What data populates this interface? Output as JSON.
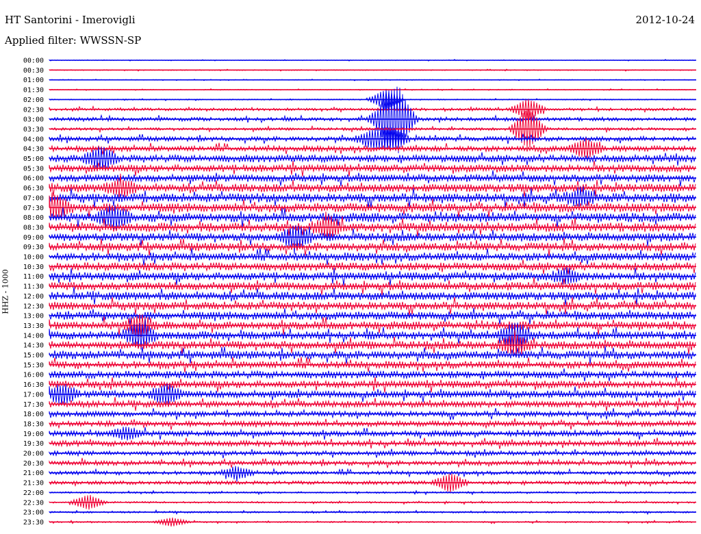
{
  "header": {
    "station": "HT Santorini - Imerovigli",
    "filter": "Applied filter: WWSSN-SP",
    "date": "2012-10-24"
  },
  "chart_data": {
    "type": "line",
    "title": "HT Santorini - Imerovigli",
    "subtitle": "Applied filter: WWSSN-SP",
    "ylabel": "HHZ - 1000",
    "xlabel": "",
    "grid": false,
    "legend": "none",
    "trace_colors": [
      "#0000ee",
      "#ee0033"
    ],
    "rows": [
      "00:00",
      "00:30",
      "01:00",
      "01:30",
      "02:00",
      "02:30",
      "03:00",
      "03:30",
      "04:00",
      "04:30",
      "05:00",
      "05:30",
      "06:00",
      "06:30",
      "07:00",
      "07:30",
      "08:00",
      "08:30",
      "09:00",
      "09:30",
      "10:00",
      "10:30",
      "11:00",
      "11:30",
      "12:00",
      "12:30",
      "13:00",
      "13:30",
      "14:00",
      "14:30",
      "15:00",
      "15:30",
      "16:00",
      "16:30",
      "17:00",
      "17:30",
      "18:00",
      "18:30",
      "19:00",
      "19:30",
      "20:00",
      "20:30",
      "21:00",
      "21:30",
      "22:00",
      "22:30",
      "23:00",
      "23:30"
    ],
    "noise_level": [
      0.4,
      0.5,
      0.4,
      0.5,
      0.6,
      1.5,
      2,
      1.5,
      2.5,
      3,
      4,
      4,
      4,
      4.5,
      5,
      5,
      5,
      5,
      4.5,
      4.5,
      4.5,
      4.5,
      4.5,
      4.5,
      4.5,
      4.5,
      4.5,
      4.5,
      4.5,
      4.5,
      4.5,
      4,
      4,
      4,
      4,
      3.5,
      3,
      3,
      3,
      3,
      2.5,
      2.5,
      2,
      2,
      1,
      1,
      1,
      0.8
    ],
    "events": [
      {
        "row": 4,
        "x": 0.52,
        "amp": 14
      },
      {
        "row": 6,
        "x": 0.52,
        "amp": 22
      },
      {
        "row": 6,
        "x": 0.54,
        "amp": 40
      },
      {
        "row": 8,
        "x": 0.5,
        "amp": 12
      },
      {
        "row": 8,
        "x": 0.53,
        "amp": 14
      },
      {
        "row": 7,
        "x": 0.74,
        "amp": 28
      },
      {
        "row": 5,
        "x": 0.74,
        "amp": 14
      },
      {
        "row": 9,
        "x": 0.83,
        "amp": 12
      },
      {
        "row": 10,
        "x": 0.08,
        "amp": 14
      },
      {
        "row": 13,
        "x": 0.11,
        "amp": 10
      },
      {
        "row": 14,
        "x": 0.82,
        "amp": 10
      },
      {
        "row": 15,
        "x": 0.01,
        "amp": 14
      },
      {
        "row": 16,
        "x": 0.1,
        "amp": 14
      },
      {
        "row": 17,
        "x": 0.43,
        "amp": 12
      },
      {
        "row": 18,
        "x": 0.38,
        "amp": 14
      },
      {
        "row": 22,
        "x": 0.8,
        "amp": 8
      },
      {
        "row": 27,
        "x": 0.14,
        "amp": 12
      },
      {
        "row": 28,
        "x": 0.14,
        "amp": 16
      },
      {
        "row": 28,
        "x": 0.72,
        "amp": 16
      },
      {
        "row": 29,
        "x": 0.72,
        "amp": 12
      },
      {
        "row": 34,
        "x": 0.02,
        "amp": 12
      },
      {
        "row": 34,
        "x": 0.18,
        "amp": 12
      },
      {
        "row": 38,
        "x": 0.12,
        "amp": 8
      },
      {
        "row": 42,
        "x": 0.29,
        "amp": 8
      },
      {
        "row": 43,
        "x": 0.62,
        "amp": 12
      },
      {
        "row": 45,
        "x": 0.06,
        "amp": 10
      },
      {
        "row": 47,
        "x": 0.19,
        "amp": 6
      }
    ]
  }
}
